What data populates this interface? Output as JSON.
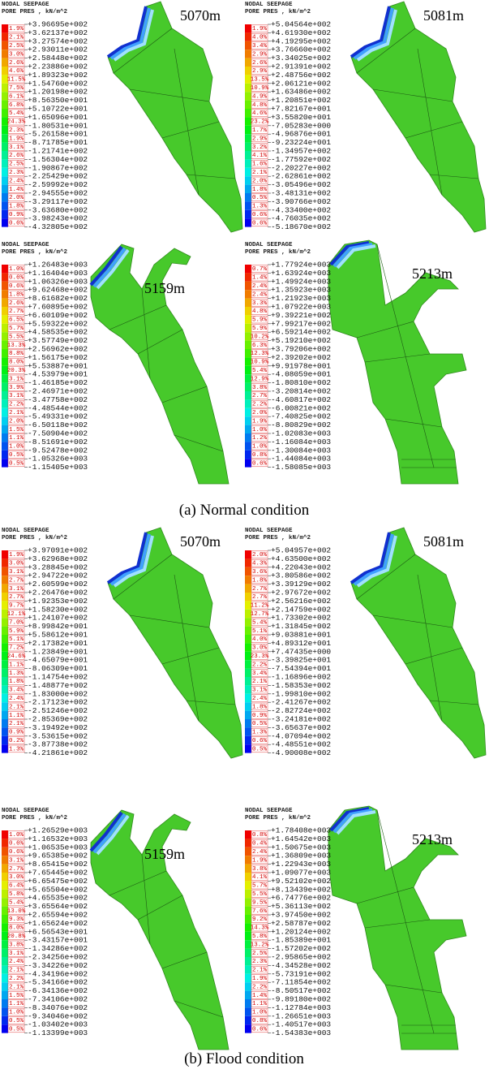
{
  "figure": {
    "sections": [
      {
        "caption": "(a) Normal condition",
        "panels": [
          {
            "header": [
              "NODAL SEEPAGE",
              "PORE PRES , kN/m^2"
            ],
            "label": "5070m",
            "percents": [
              "1.9%",
              "2.1%",
              "2.5%",
              "3.0%",
              "2.6%",
              "4.6%",
              "11.5%",
              "7.5%",
              "6.1%",
              "6.8%",
              "5.4%",
              "24.3%",
              "2.3%",
              "1.9%",
              "3.1%",
              "2.6%",
              "2.5%",
              "2.3%",
              "2.4%",
              "1.4%",
              "2.0%",
              "1.8%",
              "0.9%",
              "0.6%"
            ],
            "values": [
              "+3.96695e+002",
              "+3.62137e+002",
              "+3.27574e+002",
              "+2.93011e+002",
              "+2.58448e+002",
              "+2.23886e+002",
              "+1.89323e+002",
              "+1.54760e+002",
              "+1.20198e+002",
              "+8.56350e+001",
              "+5.10722e+001",
              "+1.65096e+001",
              "-1.80531e+001",
              "-5.26158e+001",
              "-8.71785e+001",
              "-1.21741e+002",
              "-1.56304e+002",
              "-1.90867e+002",
              "-2.25429e+002",
              "-2.59992e+002",
              "-2.94555e+002",
              "-3.29117e+002",
              "-3.63680e+002",
              "-3.98243e+002",
              "-4.32805e+002"
            ]
          },
          {
            "header": [
              "NODAL SEEPAGE",
              "PORE PRES , kN/m^2"
            ],
            "label": "5081m",
            "percents": [
              "1.9%",
              "4.0%",
              "3.4%",
              "2.9%",
              "2.6%",
              "2.9%",
              "13.5%",
              "10.9%",
              "4.9%",
              "4.8%",
              "4.6%",
              "23.2%",
              "1.7%",
              "2.9%",
              "3.2%",
              "4.1%",
              "1.6%",
              "2.1%",
              "2.0%",
              "1.8%",
              "0.5%",
              "1.3%",
              "0.6%",
              "0.6%"
            ],
            "values": [
              "+5.04564e+002",
              "+4.61930e+002",
              "+4.19295e+002",
              "+3.76660e+002",
              "+3.34025e+002",
              "+2.91391e+002",
              "+2.48756e+002",
              "+2.06121e+002",
              "+1.63486e+002",
              "+1.20851e+002",
              "+7.82167e+001",
              "+3.55820e+001",
              "-7.05283e+000",
              "-4.96876e+001",
              "-9.23224e+001",
              "-1.34957e+002",
              "-1.77592e+002",
              "-2.20227e+002",
              "-2.62861e+002",
              "-3.05496e+002",
              "-3.48131e+002",
              "-3.90766e+002",
              "-4.33400e+002",
              "-4.76035e+002",
              "-5.18670e+002"
            ]
          },
          {
            "header": [
              "NODAL SEEPAGE",
              "PORE PRES , kN/m^2"
            ],
            "label": "5159m",
            "percents": [
              "1.0%",
              "0.6%",
              "0.6%",
              "1.8%",
              "2.6%",
              "2.7%",
              "6.5%",
              "5.7%",
              "5.5%",
              "13.3%",
              "8.8%",
              "8.0%",
              "20.3%",
              "3.1%",
              "3.9%",
              "3.1%",
              "2.2%",
              "2.1%",
              "2.0%",
              "1.5%",
              "1.1%",
              "1.0%",
              "0.5%",
              "0.5%"
            ],
            "values": [
              "+1.26483e+003",
              "+1.16404e+003",
              "+1.06326e+003",
              "+9.62468e+002",
              "+8.61682e+002",
              "+7.60895e+002",
              "+6.60109e+002",
              "+5.59322e+002",
              "+4.58535e+002",
              "+3.57749e+002",
              "+2.56962e+002",
              "+1.56175e+002",
              "+5.53887e+001",
              "-4.53979e+001",
              "-1.46185e+002",
              "-2.46971e+002",
              "-3.47758e+002",
              "-4.48544e+002",
              "-5.49331e+002",
              "-6.50118e+002",
              "-7.50904e+002",
              "-8.51691e+002",
              "-9.52478e+002",
              "-1.05326e+003",
              "-1.15405e+003"
            ]
          },
          {
            "header": [
              "NODAL SEEPAGE",
              "PORE PRES , kN/m^2"
            ],
            "label": "5213m",
            "percents": [
              "0.7%",
              "1.4%",
              "2.4%",
              "2.4%",
              "3.3%",
              "4.8%",
              "5.9%",
              "5.9%",
              "10.2%",
              "6.3%",
              "12.3%",
              "10.9%",
              "5.4%",
              "12.9%",
              "3.8%",
              "2.7%",
              "2.2%",
              "2.0%",
              "1.9%",
              "1.0%",
              "1.2%",
              "1.0%",
              "0.8%",
              "0.6%"
            ],
            "values": [
              "+1.77924e+003",
              "+1.63924e+003",
              "+1.49924e+003",
              "+1.35923e+003",
              "+1.21923e+003",
              "+1.07922e+003",
              "+9.39221e+002",
              "+7.99217e+002",
              "+6.59214e+002",
              "+5.19210e+002",
              "+3.79206e+002",
              "+2.39202e+002",
              "+9.91978e+001",
              "-4.08059e+001",
              "-1.80810e+002",
              "-3.20814e+002",
              "-4.60817e+002",
              "-6.00821e+002",
              "-7.40825e+002",
              "-8.80829e+002",
              "-1.02083e+003",
              "-1.16084e+003",
              "-1.30084e+003",
              "-1.44084e+003",
              "-1.58085e+003"
            ]
          }
        ]
      },
      {
        "caption": "(b) Flood condition",
        "panels": [
          {
            "header": [
              "NODAL SEEPAGE",
              "PORE PRES , kN/m^2"
            ],
            "label": "5070m",
            "percents": [
              "1.9%",
              "3.0%",
              "3.1%",
              "2.7%",
              "3.1%",
              "2.7%",
              "9.7%",
              "12.1%",
              "7.0%",
              "5.9%",
              "5.1%",
              "7.2%",
              "24.6%",
              "1.1%",
              "1.3%",
              "1.8%",
              "3.4%",
              "2.4%",
              "2.1%",
              "1.1%",
              "2.1%",
              "0.9%",
              "0.2%",
              "1.3%"
            ],
            "values": [
              "+3.97091e+002",
              "+3.62968e+002",
              "+3.28845e+002",
              "+2.94722e+002",
              "+2.60599e+002",
              "+2.26476e+002",
              "+1.92353e+002",
              "+1.58230e+002",
              "+1.24107e+002",
              "+8.99842e+001",
              "+5.58612e+001",
              "+2.17382e+001",
              "-1.23849e+001",
              "-4.65079e+001",
              "-8.06309e+001",
              "-1.14754e+002",
              "-1.48877e+002",
              "-1.83000e+002",
              "-2.17123e+002",
              "-2.51246e+002",
              "-2.85369e+002",
              "-3.19492e+002",
              "-3.53615e+002",
              "-3.87738e+002",
              "-4.21861e+002"
            ]
          },
          {
            "header": [
              "NODAL SEEPAGE",
              "PORE PRES , kN/m^2"
            ],
            "label": "5081m",
            "percents": [
              "2.0%",
              "4.3%",
              "3.6%",
              "1.8%",
              "2.7%",
              "2.7%",
              "11.2%",
              "12.7%",
              "5.4%",
              "5.1%",
              "4.0%",
              "3.0%",
              "23.3%",
              "2.2%",
              "3.4%",
              "2.1%",
              "3.1%",
              "2.4%",
              "1.8%",
              "0.9%",
              "0.5%",
              "1.3%",
              "0.6%",
              "0.5%"
            ],
            "values": [
              "+5.04957e+002",
              "+4.63500e+002",
              "+4.22043e+002",
              "+3.80586e+002",
              "+3.39129e+002",
              "+2.97672e+002",
              "+2.56216e+002",
              "+2.14759e+002",
              "+1.73302e+002",
              "+1.31845e+002",
              "+9.03881e+001",
              "+4.89312e+001",
              "+7.47435e+000",
              "-3.39825e+001",
              "-7.54394e+001",
              "-1.16896e+002",
              "-1.58353e+002",
              "-1.99810e+002",
              "-2.41267e+002",
              "-2.82724e+002",
              "-3.24181e+002",
              "-3.65637e+002",
              "-4.07094e+002",
              "-4.48551e+002",
              "-4.90008e+002"
            ]
          },
          {
            "header": [
              "NODAL SEEPAGE",
              "PORE PRES , kN/m^2"
            ],
            "label": "5159m",
            "percents": [
              "1.0%",
              "0.6%",
              "0.6%",
              "3.1%",
              "2.7%",
              "3.0%",
              "6.4%",
              "5.8%",
              "5.4%",
              "13.0%",
              "9.3%",
              "8.0%",
              "20.8%",
              "3.8%",
              "3.1%",
              "2.4%",
              "2.1%",
              "2.2%",
              "2.1%",
              "1.5%",
              "1.1%",
              "1.0%",
              "0.5%",
              "0.5%"
            ],
            "values": [
              "+1.26529e+003",
              "+1.16532e+003",
              "+1.06535e+003",
              "+9.65385e+002",
              "+8.65415e+002",
              "+7.65445e+002",
              "+6.65475e+002",
              "+5.65504e+002",
              "+4.65535e+002",
              "+3.65564e+002",
              "+2.65594e+002",
              "+1.65624e+002",
              "+6.56543e+001",
              "-3.43157e+001",
              "-1.34286e+002",
              "-2.34256e+002",
              "-3.34226e+002",
              "-4.34196e+002",
              "-5.34166e+002",
              "-6.34136e+002",
              "-7.34106e+002",
              "-8.34076e+002",
              "-9.34046e+002",
              "-1.03402e+003",
              "-1.13399e+003"
            ]
          },
          {
            "header": [
              "NODAL SEEPAGE",
              "PORE PRES , kN/m^2"
            ],
            "label": "5213m",
            "percents": [
              "0.8%",
              "0.4%",
              "2.4%",
              "1.9%",
              "3.8%",
              "4.1%",
              "5.7%",
              "5.5%",
              "9.5%",
              "7.6%",
              "9.2%",
              "14.3%",
              "5.8%",
              "13.2%",
              "2.5%",
              "2.3%",
              "2.1%",
              "1.9%",
              "2.2%",
              "1.4%",
              "1.1%",
              "1.0%",
              "0.8%",
              "0.6%"
            ],
            "values": [
              "+1.78408e+003",
              "+1.64542e+003",
              "+1.50675e+003",
              "+1.36809e+003",
              "+1.22943e+003",
              "+1.09077e+003",
              "+9.52102e+002",
              "+8.13439e+002",
              "+6.74776e+002",
              "+5.36113e+002",
              "+3.97450e+002",
              "+2.58787e+002",
              "+1.20124e+002",
              "-1.85389e+001",
              "-1.57202e+002",
              "-2.95865e+002",
              "-4.34528e+002",
              "-5.73191e+002",
              "-7.11854e+002",
              "-8.50517e+002",
              "-9.89180e+002",
              "-1.12784e+003",
              "-1.26651e+003",
              "-1.40517e+003",
              "-1.54383e+003"
            ]
          }
        ]
      }
    ]
  }
}
